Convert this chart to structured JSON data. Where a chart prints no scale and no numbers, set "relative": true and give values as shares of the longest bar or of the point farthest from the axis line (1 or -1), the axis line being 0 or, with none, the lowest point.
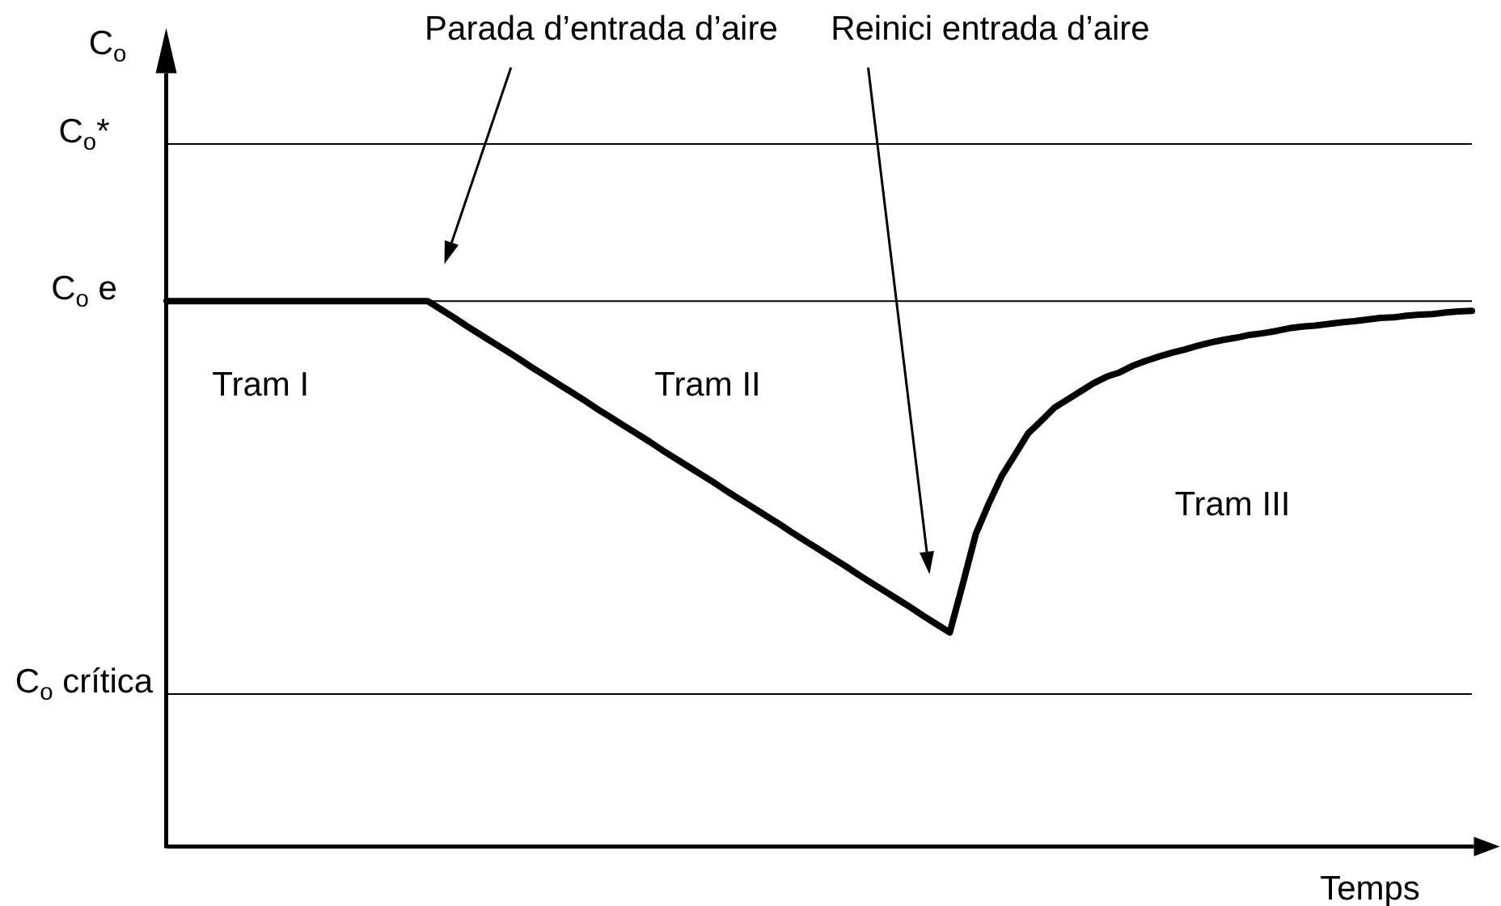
{
  "chart_data": {
    "type": "line",
    "relative": true,
    "xlabel": "Temps",
    "categories": [
      null,
      null,
      null,
      null,
      null,
      null,
      null,
      null,
      null,
      null,
      null,
      null,
      null,
      null,
      null,
      null,
      null,
      null,
      null,
      null,
      null,
      null,
      null,
      null,
      null,
      null,
      null,
      null,
      null,
      null,
      null,
      null,
      null,
      null,
      null,
      null,
      null,
      null,
      null,
      null,
      null,
      null,
      null,
      null,
      null,
      null,
      null,
      null,
      null,
      null,
      null,
      null,
      null,
      null,
      null,
      null,
      null,
      null,
      null,
      null,
      null,
      null,
      null,
      null,
      null,
      null,
      null,
      null,
      null,
      null,
      null,
      null,
      null,
      null,
      null,
      null,
      null,
      null,
      null,
      null,
      null,
      null,
      null,
      null,
      null,
      null,
      null,
      null,
      null,
      null,
      null,
      null,
      null,
      null,
      null,
      null,
      null,
      null,
      null,
      null,
      null
    ],
    "values": [
      1,
      1,
      1,
      1,
      1,
      1,
      1,
      1,
      1,
      1,
      1,
      1,
      1,
      1,
      1,
      1,
      1,
      1,
      1,
      1,
      1,
      0.985,
      0.97,
      0.954,
      0.939,
      0.924,
      0.909,
      0.894,
      0.878,
      0.863,
      0.848,
      0.833,
      0.818,
      0.802,
      0.787,
      0.772,
      0.757,
      0.742,
      0.726,
      0.711,
      0.696,
      0.681,
      0.666,
      0.65,
      0.635,
      0.62,
      0.605,
      0.59,
      0.574,
      0.559,
      0.544,
      0.529,
      0.514,
      0.498,
      0.483,
      0.468,
      0.453,
      0.438,
      0.422,
      0.407,
      0.392,
      0.481,
      0.573,
      0.629,
      0.68,
      0.718,
      0.757,
      0.78,
      0.804,
      0.819,
      0.834,
      0.849,
      0.861,
      0.869,
      0.881,
      0.89,
      0.898,
      0.905,
      0.911,
      0.918,
      0.924,
      0.929,
      0.933,
      0.938,
      0.941,
      0.945,
      0.95,
      0.953,
      0.955,
      0.958,
      0.961,
      0.963,
      0.966,
      0.969,
      0.97,
      0.973,
      0.975,
      0.976,
      0.979,
      0.981,
      0.982
    ],
    "color": "#000000",
    "ref_lines": [
      {
        "axis": "y",
        "value": 1.288,
        "label": "C$_{o}$*",
        "color": "#000000"
      },
      {
        "axis": "y",
        "value": 1,
        "label": "C$_{o}$ e",
        "color": "#000000"
      },
      {
        "axis": "y",
        "value": 0.279,
        "label": "C$_{o}$ crítica",
        "color": "#000000"
      }
    ],
    "annotations": [
      "C$_{o}$",
      "Parada d’entrada d’aire",
      "Reinici entrada d’aire",
      "Tram I",
      "Tram II",
      "Tram III"
    ]
  }
}
